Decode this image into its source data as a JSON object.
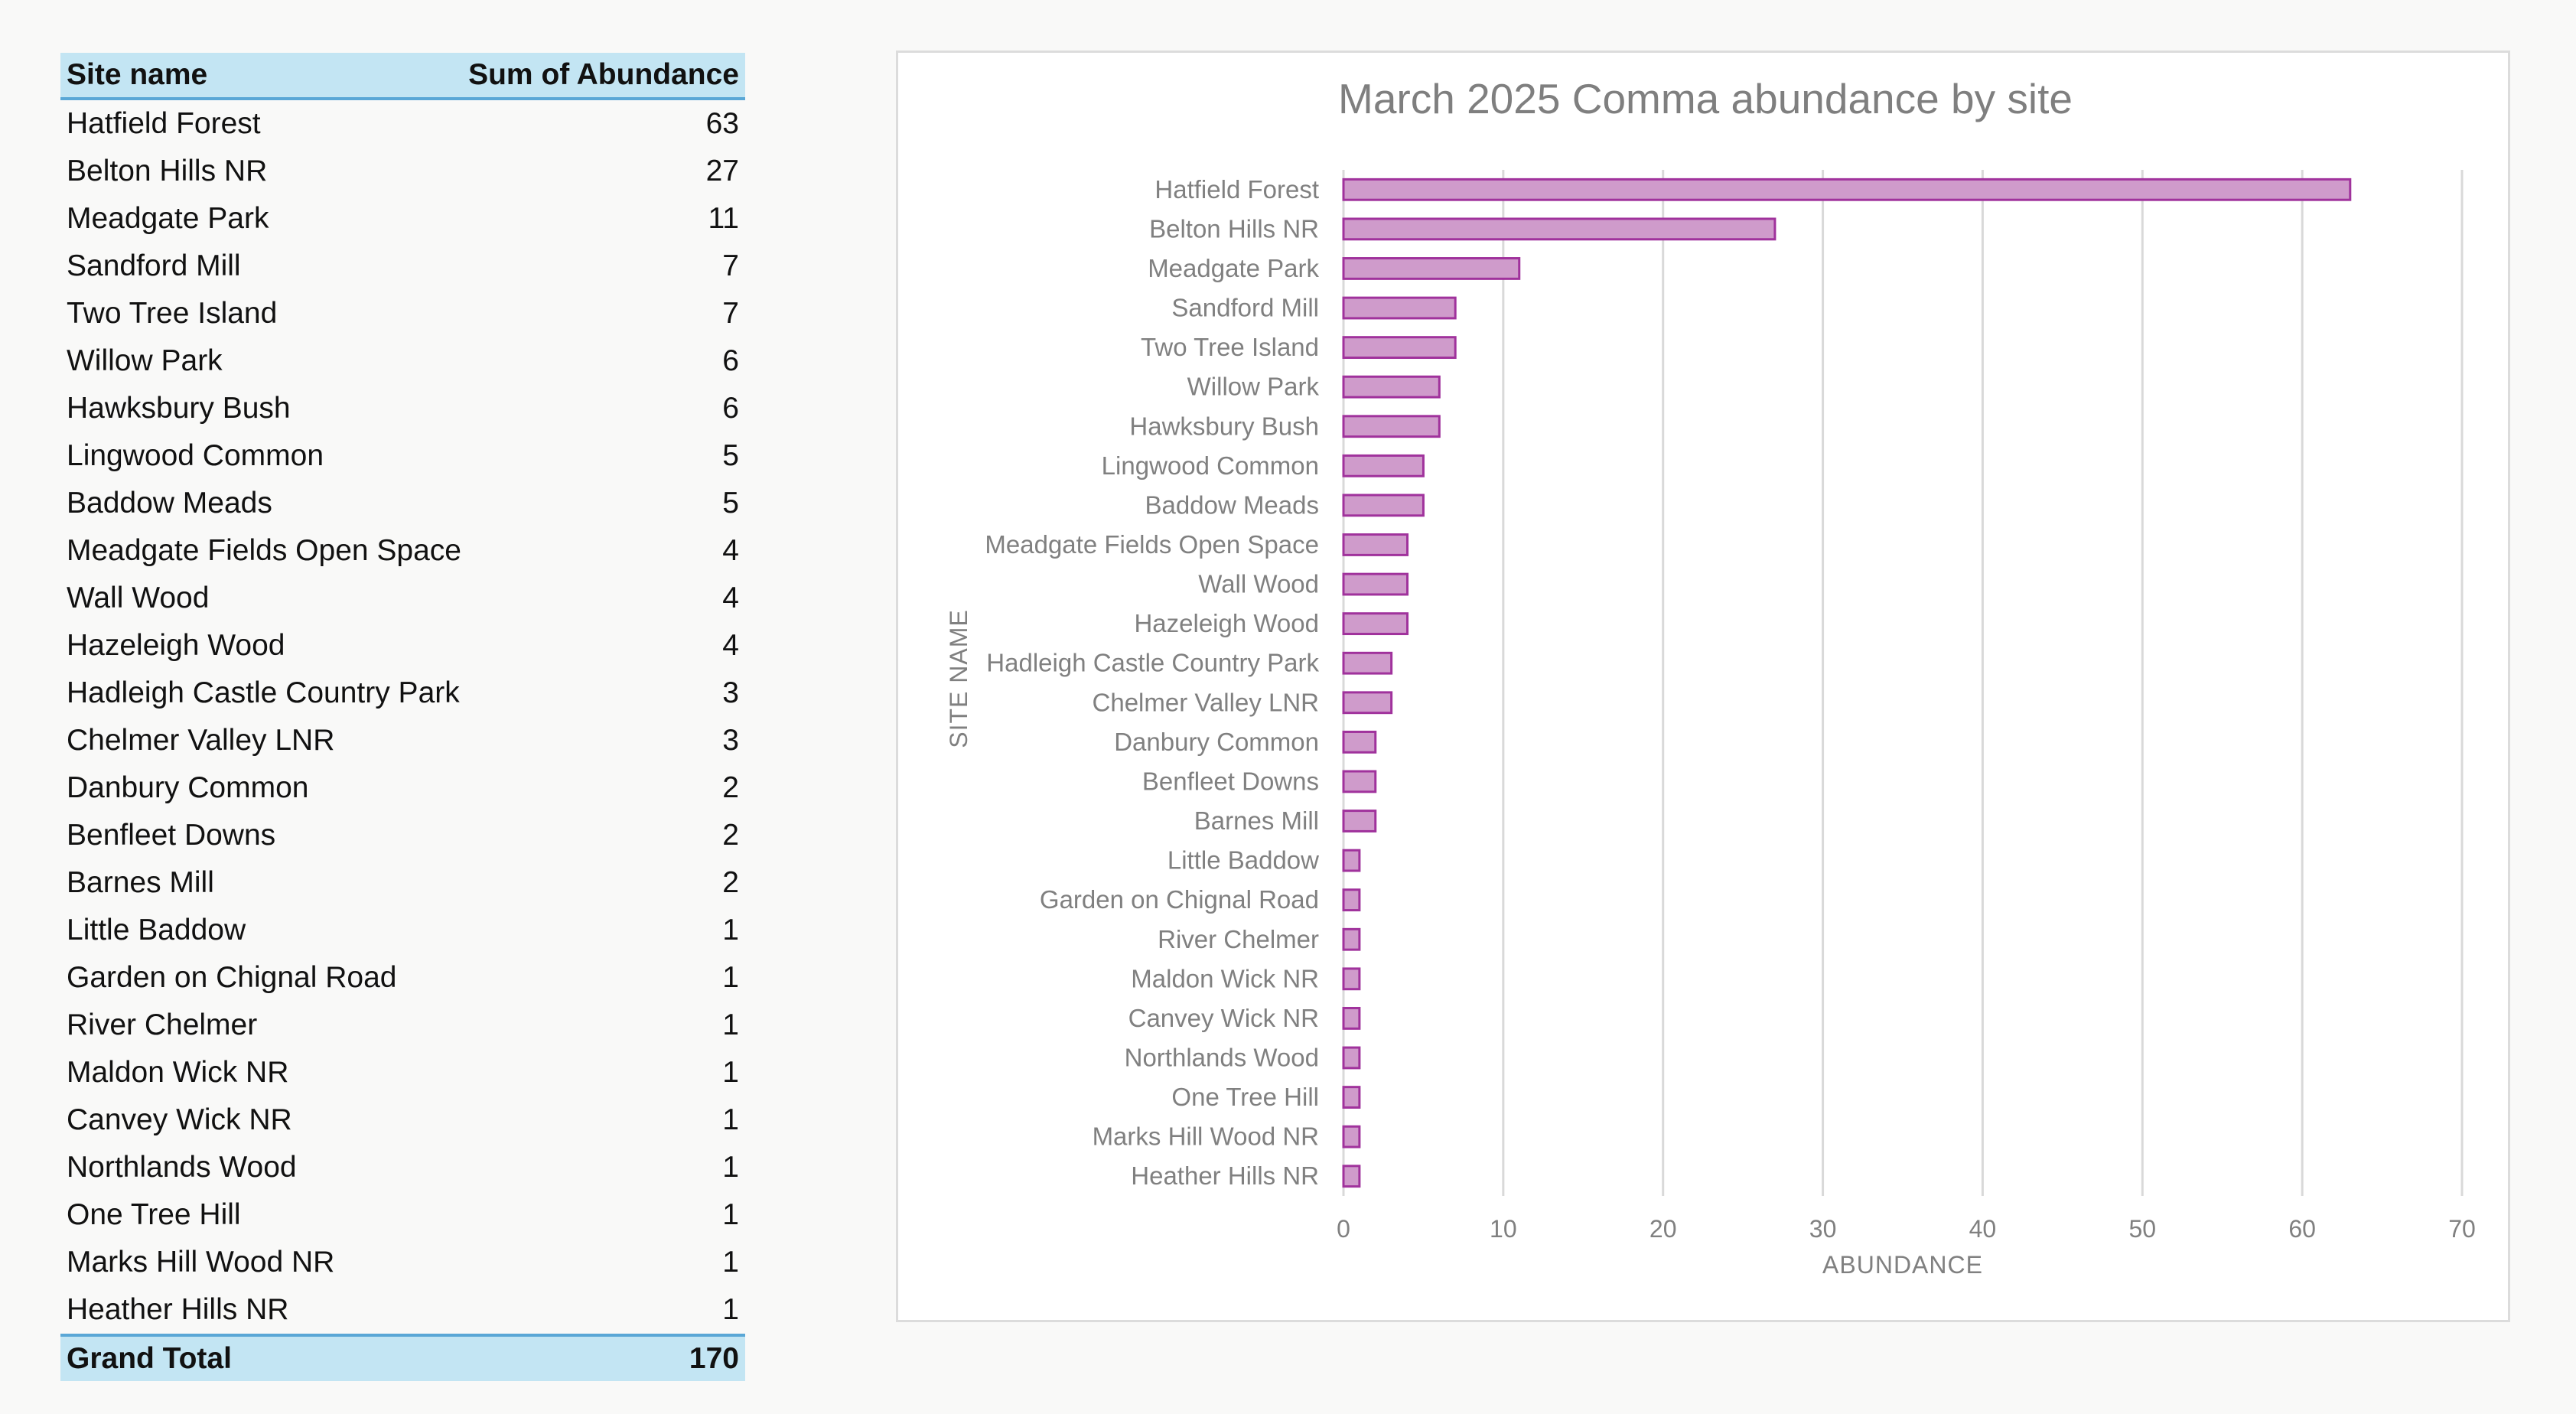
{
  "pivot": {
    "header": {
      "site_label": "Site name",
      "sum_label": "Sum of Abundance"
    },
    "rows": [
      {
        "site": "Hatfield Forest",
        "value": "63"
      },
      {
        "site": "Belton Hills NR",
        "value": "27"
      },
      {
        "site": "Meadgate Park",
        "value": "11"
      },
      {
        "site": "Sandford Mill",
        "value": "7"
      },
      {
        "site": "Two Tree Island",
        "value": "7"
      },
      {
        "site": "Willow Park",
        "value": "6"
      },
      {
        "site": "Hawksbury Bush",
        "value": "6"
      },
      {
        "site": "Lingwood Common",
        "value": "5"
      },
      {
        "site": "Baddow Meads",
        "value": "5"
      },
      {
        "site": "Meadgate Fields Open Space",
        "value": "4"
      },
      {
        "site": "Wall Wood",
        "value": "4"
      },
      {
        "site": "Hazeleigh Wood",
        "value": "4"
      },
      {
        "site": "Hadleigh Castle Country Park",
        "value": "3"
      },
      {
        "site": "Chelmer Valley LNR",
        "value": "3"
      },
      {
        "site": "Danbury Common",
        "value": "2"
      },
      {
        "site": "Benfleet Downs",
        "value": "2"
      },
      {
        "site": "Barnes Mill",
        "value": "2"
      },
      {
        "site": "Little Baddow",
        "value": "1"
      },
      {
        "site": "Garden on Chignal Road",
        "value": "1"
      },
      {
        "site": "River Chelmer",
        "value": "1"
      },
      {
        "site": "Maldon Wick NR",
        "value": "1"
      },
      {
        "site": "Canvey Wick NR",
        "value": "1"
      },
      {
        "site": "Northlands Wood",
        "value": "1"
      },
      {
        "site": "One Tree Hill",
        "value": "1"
      },
      {
        "site": "Marks Hill Wood NR",
        "value": "1"
      },
      {
        "site": "Heather Hills NR",
        "value": "1"
      }
    ],
    "footer": {
      "label": "Grand Total",
      "value": "170"
    }
  },
  "colors": {
    "bar_fill": "#cf9bcb",
    "bar_stroke": "#a0329c",
    "header_bg": "#c3e5f3",
    "header_rule": "#5aa7d6",
    "gridline": "#d9d9d9"
  },
  "chart_data": {
    "type": "bar",
    "orientation": "horizontal",
    "title": "March 2025 Comma abundance by site",
    "xlabel": "ABUNDANCE",
    "ylabel": "SITE NAME",
    "xlim": [
      0,
      70
    ],
    "xticks": [
      0,
      10,
      20,
      30,
      40,
      50,
      60,
      70
    ],
    "grid": "vertical",
    "legend": "none",
    "categories": [
      "Hatfield Forest",
      "Belton Hills NR",
      "Meadgate Park",
      "Sandford Mill",
      "Two Tree Island",
      "Willow Park",
      "Hawksbury Bush",
      "Lingwood Common",
      "Baddow Meads",
      "Meadgate Fields Open Space",
      "Wall Wood",
      "Hazeleigh Wood",
      "Hadleigh Castle Country Park",
      "Chelmer Valley LNR",
      "Danbury Common",
      "Benfleet Downs",
      "Barnes Mill",
      "Little Baddow",
      "Garden on Chignal Road",
      "River Chelmer",
      "Maldon Wick NR",
      "Canvey Wick NR",
      "Northlands Wood",
      "One Tree Hill",
      "Marks Hill Wood NR",
      "Heather Hills NR"
    ],
    "values": [
      63,
      27,
      11,
      7,
      7,
      6,
      6,
      5,
      5,
      4,
      4,
      4,
      3,
      3,
      2,
      2,
      2,
      1,
      1,
      1,
      1,
      1,
      1,
      1,
      1,
      1
    ]
  }
}
